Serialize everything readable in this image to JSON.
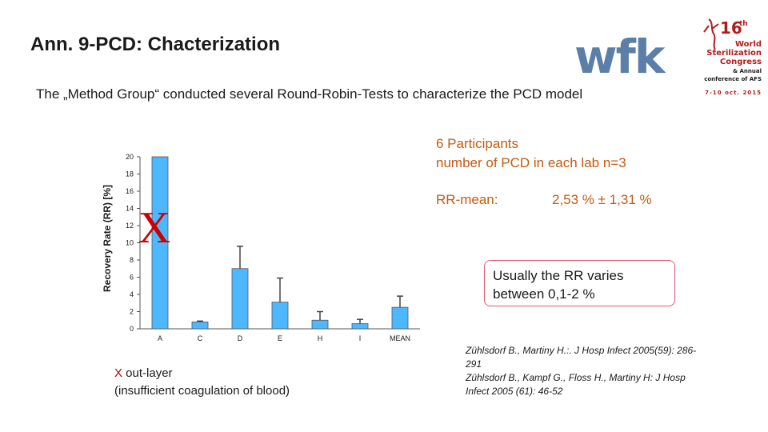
{
  "title": "Ann. 9-PCD: Chacterization",
  "intro": "The „Method Group“ conducted several Round-Robin-Tests to characterize the PCD model",
  "logo_text": "wfk",
  "congress_logo": {
    "number": "16",
    "suffix": "th",
    "lines": [
      "World",
      "Sterilization",
      "Congress",
      "& Annual",
      "conference of AFS"
    ],
    "dates": "7-10 oct. 2015"
  },
  "participants": [
    "6 Participants",
    "number of PCD in each lab n=3"
  ],
  "rr_mean": {
    "label": "RR-mean:",
    "value": "2,53 % ± 1,31 %"
  },
  "note": [
    "Usually the RR varies",
    "between 0,1-2 %"
  ],
  "outlayer": {
    "x": "X",
    "text1": " out-layer",
    "text2": "(insufficient coagulation of blood)"
  },
  "references": [
    "Zühlsdorf B., Martiny H.:. J Hosp Infect 2005(59): 286-291",
    "Zühlsdorf B., Kampf G., Floss H., Martiny H: J Hosp Infect 2005 (61): 46-52"
  ],
  "colors": {
    "bar": "#4db8ff",
    "accent": "#c55a11",
    "outlier_mark": "#cc0000",
    "box_border": "#e05a74",
    "logo_blue": "#5b7fa6",
    "congress_red": "#b31b1b"
  },
  "chart_data": {
    "type": "bar",
    "categories": [
      "A",
      "C",
      "D",
      "E",
      "H",
      "I",
      "MEAN"
    ],
    "values": [
      20,
      0.8,
      7.0,
      3.1,
      1.0,
      0.6,
      2.5
    ],
    "error_upper": [
      0,
      0.1,
      2.6,
      2.8,
      1.0,
      0.5,
      1.3
    ],
    "outlier": {
      "category": "A",
      "mark": "X",
      "clipped": true
    },
    "ylabel": "Recovery Rate (RR) [%]",
    "ylim": [
      0,
      20
    ],
    "yticks": [
      0,
      2,
      4,
      6,
      8,
      10,
      12,
      14,
      16,
      18,
      20
    ],
    "grid": false
  }
}
